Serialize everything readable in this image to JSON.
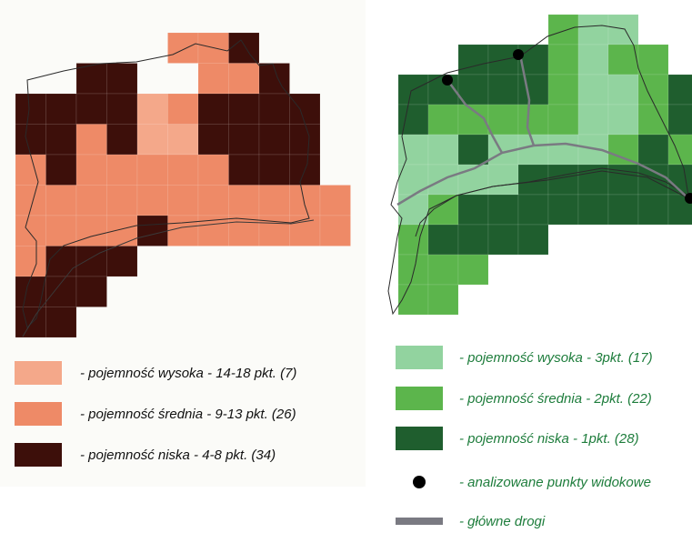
{
  "colors": {
    "left_high": "#f4a88a",
    "left_medium": "#ee8a67",
    "left_low": "#3d0f0a",
    "right_high": "#92d39f",
    "right_medium": "#5cb54c",
    "right_low": "#1f5e2e",
    "road": "#7a7a82",
    "viewpoint": "#000000"
  },
  "left_map": {
    "legend": [
      {
        "class": "high",
        "label": "- pojemność wysoka - 14-18 pkt. (7)"
      },
      {
        "class": "medium",
        "label": "- pojemność średnia - 9-13 pkt. (26)"
      },
      {
        "class": "low",
        "label": "- pojemność niska - 4-8 pkt. (34)"
      }
    ]
  },
  "right_map": {
    "legend": [
      {
        "class": "high",
        "label": "- pojemność wysoka - 3pkt. (17)"
      },
      {
        "class": "medium",
        "label": "- pojemność średnia - 2pkt. (22)"
      },
      {
        "class": "low",
        "label": "- pojemność niska - 1pkt. (28)"
      },
      {
        "class": "viewpoint",
        "label": "- analizowane punkty widokowe"
      },
      {
        "class": "road",
        "label": "- główne drogi"
      }
    ]
  }
}
